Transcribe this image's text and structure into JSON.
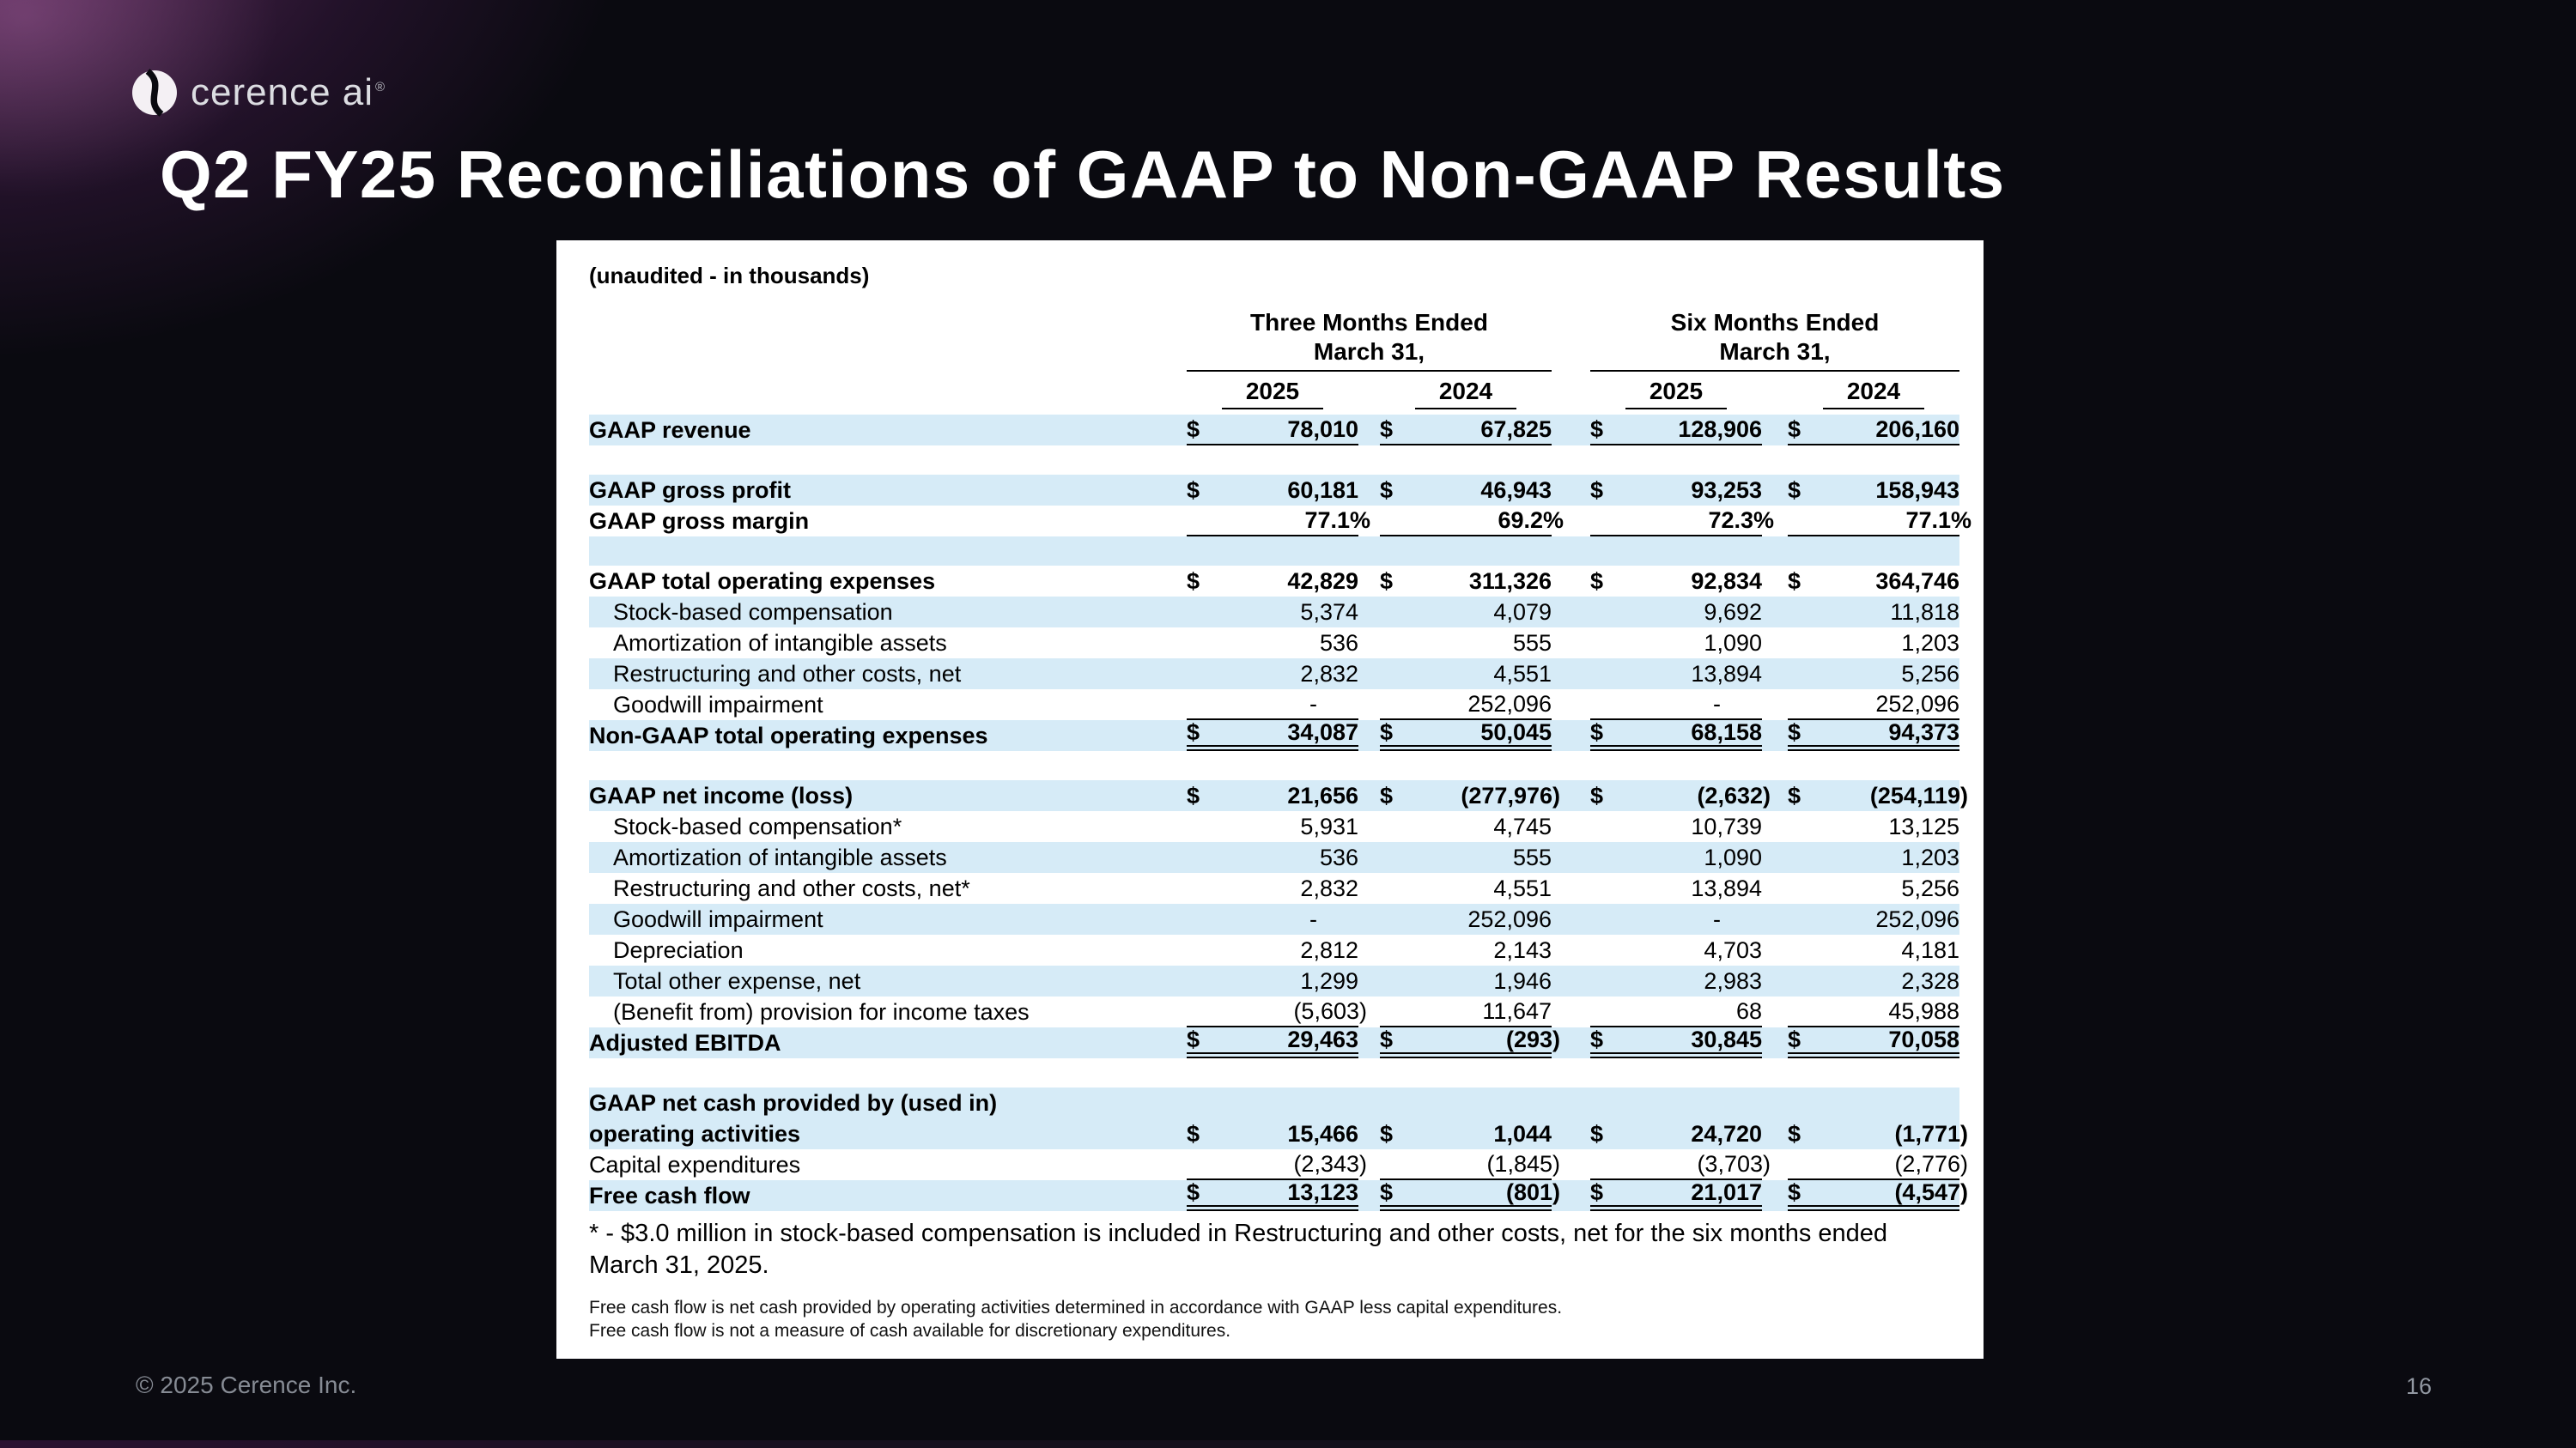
{
  "slide": {
    "logo_text": "cerence ai",
    "logo_reg": "®",
    "title": "Q2 FY25 Reconciliations of GAAP to Non-GAAP Results",
    "footer_left": "© 2025 Cerence Inc.",
    "page_number": "16"
  },
  "table": {
    "subtitle": "(unaudited - in thousands)",
    "col_groups": [
      {
        "line1": "Three Months Ended",
        "line2": "March 31,"
      },
      {
        "line1": "Six Months Ended",
        "line2": "March 31,"
      }
    ],
    "years": [
      "2025",
      "2024",
      "2025",
      "2024"
    ],
    "colors": {
      "row_shade": "#d6ebf7"
    },
    "rows": [
      {
        "type": "data",
        "label": "GAAP revenue",
        "bold": true,
        "shade": true,
        "underline": "single",
        "cells": [
          {
            "d": "$",
            "v": "78,010"
          },
          {
            "d": "$",
            "v": "67,825"
          },
          {
            "d": "$",
            "v": "128,906"
          },
          {
            "d": "$",
            "v": "206,160"
          }
        ]
      },
      {
        "type": "spacer",
        "shade": false
      },
      {
        "type": "data",
        "label": "GAAP gross profit",
        "bold": true,
        "shade": true,
        "cells": [
          {
            "d": "$",
            "v": "60,181"
          },
          {
            "d": "$",
            "v": "46,943"
          },
          {
            "d": "$",
            "v": "93,253"
          },
          {
            "d": "$",
            "v": "158,943"
          }
        ]
      },
      {
        "type": "data",
        "label": "GAAP gross margin",
        "bold": true,
        "shade": false,
        "underline": "single",
        "cells": [
          {
            "d": "",
            "v": "77.1%"
          },
          {
            "d": "",
            "v": "69.2%"
          },
          {
            "d": "",
            "v": "72.3%"
          },
          {
            "d": "",
            "v": "77.1%"
          }
        ]
      },
      {
        "type": "spacer",
        "shade": true
      },
      {
        "type": "data",
        "label": "GAAP total operating expenses",
        "bold": true,
        "shade": false,
        "cells": [
          {
            "d": "$",
            "v": "42,829"
          },
          {
            "d": "$",
            "v": "311,326"
          },
          {
            "d": "$",
            "v": "92,834"
          },
          {
            "d": "$",
            "v": "364,746"
          }
        ]
      },
      {
        "type": "data",
        "label": "Stock-based compensation",
        "indent": true,
        "shade": true,
        "cells": [
          {
            "d": "",
            "v": "5,374"
          },
          {
            "d": "",
            "v": "4,079"
          },
          {
            "d": "",
            "v": "9,692"
          },
          {
            "d": "",
            "v": "11,818"
          }
        ]
      },
      {
        "type": "data",
        "label": "Amortization of intangible assets",
        "indent": true,
        "shade": false,
        "cells": [
          {
            "d": "",
            "v": "536"
          },
          {
            "d": "",
            "v": "555"
          },
          {
            "d": "",
            "v": "1,090"
          },
          {
            "d": "",
            "v": "1,203"
          }
        ]
      },
      {
        "type": "data",
        "label": "Restructuring and other costs, net",
        "indent": true,
        "shade": true,
        "cells": [
          {
            "d": "",
            "v": "2,832"
          },
          {
            "d": "",
            "v": "4,551"
          },
          {
            "d": "",
            "v": "13,894"
          },
          {
            "d": "",
            "v": "5,256"
          }
        ]
      },
      {
        "type": "data",
        "label": "Goodwill impairment",
        "indent": true,
        "shade": false,
        "underline": "single",
        "cells": [
          {
            "d": "",
            "v": "-"
          },
          {
            "d": "",
            "v": "252,096"
          },
          {
            "d": "",
            "v": "-"
          },
          {
            "d": "",
            "v": "252,096"
          }
        ]
      },
      {
        "type": "data",
        "label": "Non-GAAP total operating expenses",
        "bold": true,
        "shade": true,
        "underline": "double",
        "cells": [
          {
            "d": "$",
            "v": "34,087"
          },
          {
            "d": "$",
            "v": "50,045"
          },
          {
            "d": "$",
            "v": "68,158"
          },
          {
            "d": "$",
            "v": "94,373"
          }
        ]
      },
      {
        "type": "spacer",
        "shade": false
      },
      {
        "type": "data",
        "label": "GAAP net income (loss)",
        "bold": true,
        "shade": true,
        "cells": [
          {
            "d": "$",
            "v": "21,656"
          },
          {
            "d": "$",
            "v": "(277,976)"
          },
          {
            "d": "$",
            "v": "(2,632)"
          },
          {
            "d": "$",
            "v": "(254,119)"
          }
        ]
      },
      {
        "type": "data",
        "label": "Stock-based compensation*",
        "indent": true,
        "shade": false,
        "cells": [
          {
            "d": "",
            "v": "5,931"
          },
          {
            "d": "",
            "v": "4,745"
          },
          {
            "d": "",
            "v": "10,739"
          },
          {
            "d": "",
            "v": "13,125"
          }
        ]
      },
      {
        "type": "data",
        "label": "Amortization of intangible assets",
        "indent": true,
        "shade": true,
        "cells": [
          {
            "d": "",
            "v": "536"
          },
          {
            "d": "",
            "v": "555"
          },
          {
            "d": "",
            "v": "1,090"
          },
          {
            "d": "",
            "v": "1,203"
          }
        ]
      },
      {
        "type": "data",
        "label": "Restructuring and other costs, net*",
        "indent": true,
        "shade": false,
        "cells": [
          {
            "d": "",
            "v": "2,832"
          },
          {
            "d": "",
            "v": "4,551"
          },
          {
            "d": "",
            "v": "13,894"
          },
          {
            "d": "",
            "v": "5,256"
          }
        ]
      },
      {
        "type": "data",
        "label": "Goodwill impairment",
        "indent": true,
        "shade": true,
        "cells": [
          {
            "d": "",
            "v": "-"
          },
          {
            "d": "",
            "v": "252,096"
          },
          {
            "d": "",
            "v": "-"
          },
          {
            "d": "",
            "v": "252,096"
          }
        ]
      },
      {
        "type": "data",
        "label": "Depreciation",
        "indent": true,
        "shade": false,
        "cells": [
          {
            "d": "",
            "v": "2,812"
          },
          {
            "d": "",
            "v": "2,143"
          },
          {
            "d": "",
            "v": "4,703"
          },
          {
            "d": "",
            "v": "4,181"
          }
        ]
      },
      {
        "type": "data",
        "label": "Total other expense, net",
        "indent": true,
        "shade": true,
        "cells": [
          {
            "d": "",
            "v": "1,299"
          },
          {
            "d": "",
            "v": "1,946"
          },
          {
            "d": "",
            "v": "2,983"
          },
          {
            "d": "",
            "v": "2,328"
          }
        ]
      },
      {
        "type": "data",
        "label": "(Benefit from) provision for income taxes",
        "indent": true,
        "shade": false,
        "underline": "single",
        "cells": [
          {
            "d": "",
            "v": "(5,603)"
          },
          {
            "d": "",
            "v": "11,647"
          },
          {
            "d": "",
            "v": "68"
          },
          {
            "d": "",
            "v": "45,988"
          }
        ]
      },
      {
        "type": "data",
        "label": "Adjusted EBITDA",
        "bold": true,
        "shade": true,
        "underline": "double",
        "cells": [
          {
            "d": "$",
            "v": "29,463"
          },
          {
            "d": "$",
            "v": "(293)"
          },
          {
            "d": "$",
            "v": "30,845"
          },
          {
            "d": "$",
            "v": "70,058"
          }
        ]
      },
      {
        "type": "spacer",
        "shade": false
      },
      {
        "type": "data",
        "label": "GAAP net cash provided by (used in)",
        "label2": "operating activities",
        "bold": true,
        "shade": true,
        "cells": [
          {
            "d": "$",
            "v": "15,466"
          },
          {
            "d": "$",
            "v": "1,044"
          },
          {
            "d": "$",
            "v": "24,720"
          },
          {
            "d": "$",
            "v": "(1,771)"
          }
        ]
      },
      {
        "type": "data",
        "label": "Capital expenditures",
        "shade": false,
        "underline": "single",
        "cells": [
          {
            "d": "",
            "v": "(2,343)"
          },
          {
            "d": "",
            "v": "(1,845)"
          },
          {
            "d": "",
            "v": "(3,703)"
          },
          {
            "d": "",
            "v": "(2,776)"
          }
        ]
      },
      {
        "type": "data",
        "label": "Free cash flow",
        "bold": true,
        "shade": true,
        "underline": "double",
        "cells": [
          {
            "d": "$",
            "v": "13,123"
          },
          {
            "d": "$",
            "v": "(801)"
          },
          {
            "d": "$",
            "v": "21,017"
          },
          {
            "d": "$",
            "v": "(4,547)"
          }
        ]
      }
    ],
    "footnote": "* - $3.0 million in stock-based compensation is included in Restructuring and other costs, net for the six months ended March 31, 2025.",
    "fine_print": [
      "Free cash flow is net cash provided by operating activities determined in accordance with GAAP less capital expenditures.",
      "Free cash flow is not a measure of cash available for discretionary expenditures."
    ]
  }
}
